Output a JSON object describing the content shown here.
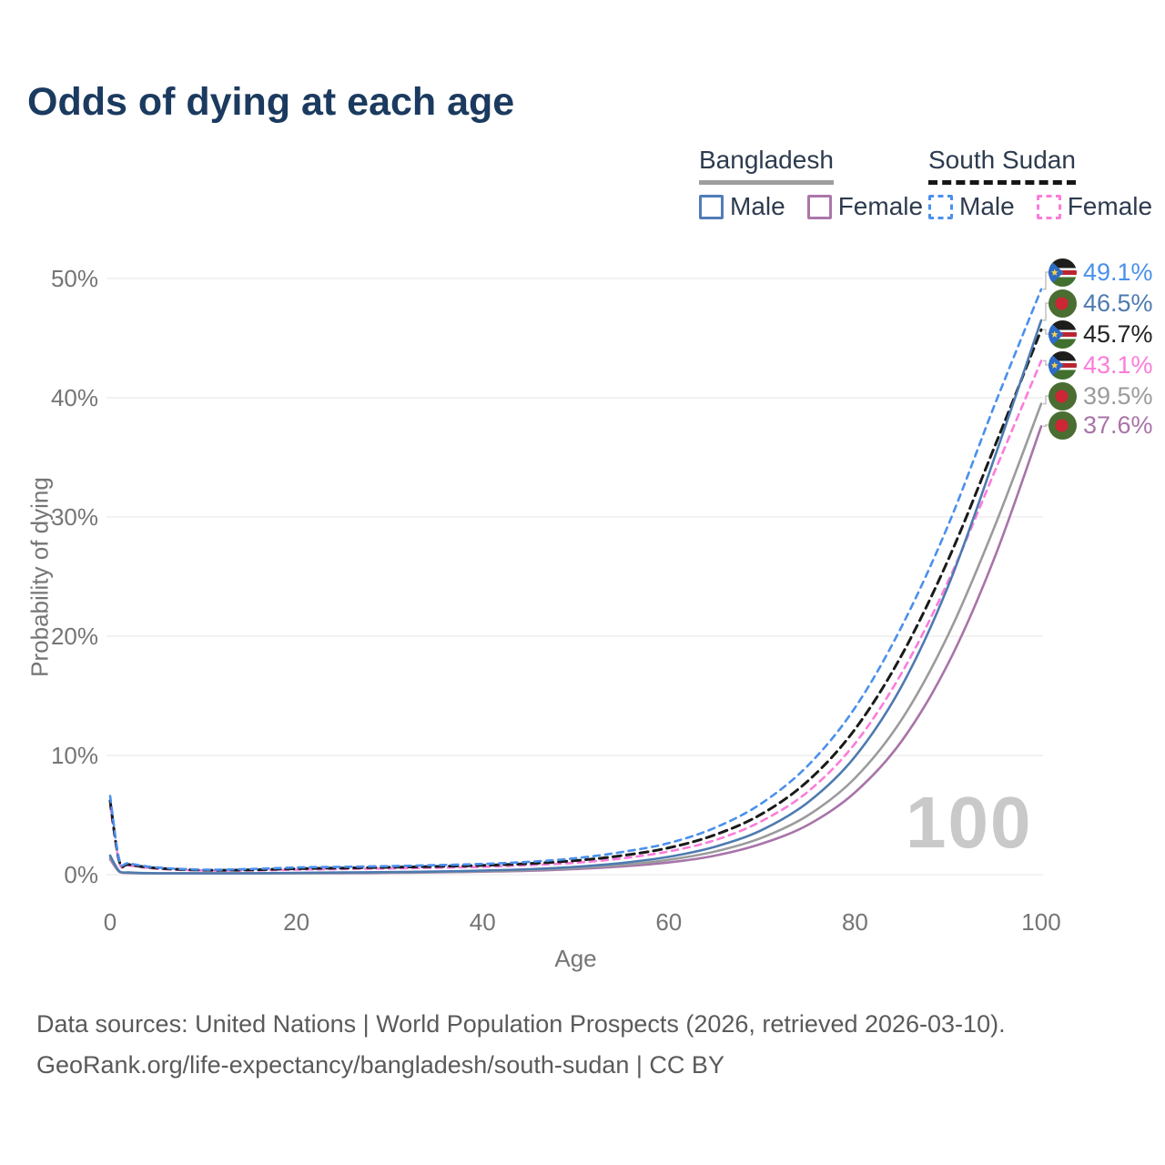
{
  "title": "Odds of dying at each age",
  "watermark": "100",
  "legend": {
    "groups": [
      {
        "country": "Bangladesh",
        "line_style": "solid",
        "underline_color": "#9e9e9e",
        "items": [
          {
            "label": "Male",
            "color": "#527cb8",
            "dashed": false
          },
          {
            "label": "Female",
            "color": "#aa77ab",
            "dashed": false
          }
        ]
      },
      {
        "country": "South Sudan",
        "line_style": "dashed",
        "underline_color": "#161616",
        "items": [
          {
            "label": "Male",
            "color": "#4a90ec",
            "dashed": true
          },
          {
            "label": "Female",
            "color": "#fb7cdb",
            "dashed": true
          }
        ]
      }
    ]
  },
  "chart_data": {
    "type": "line",
    "title": "Odds of dying at each age",
    "xlabel": "Age",
    "ylabel": "Probability of dying",
    "x_ticks": [
      0,
      20,
      40,
      60,
      80,
      100
    ],
    "y_ticks_pct": [
      0,
      10,
      20,
      30,
      40,
      50
    ],
    "y_tick_labels": [
      "0%",
      "10%",
      "20%",
      "30%",
      "40%",
      "50%"
    ],
    "xlim": [
      0,
      100
    ],
    "ylim_pct": [
      0,
      50
    ],
    "grid": "horizontal-only",
    "legend_position": "top-right",
    "ages": [
      0,
      1,
      2,
      5,
      10,
      15,
      20,
      25,
      30,
      35,
      40,
      45,
      50,
      55,
      60,
      65,
      70,
      75,
      80,
      85,
      90,
      95,
      100
    ],
    "series": [
      {
        "id": "ss-male",
        "name": "South Sudan Male",
        "country": "South Sudan",
        "sex": "Male",
        "flag": "ss",
        "color": "#4a90ec",
        "dashed": true,
        "end_label": "49.1%",
        "end_value_pct": 49.1,
        "values_pct": [
          6.6,
          1.2,
          0.95,
          0.6,
          0.42,
          0.47,
          0.6,
          0.66,
          0.72,
          0.8,
          0.9,
          1.08,
          1.38,
          1.9,
          2.65,
          3.95,
          6.0,
          9.2,
          14.0,
          20.8,
          29.3,
          39.4,
          49.1
        ]
      },
      {
        "id": "bd-male",
        "name": "Bangladesh Male",
        "country": "Bangladesh",
        "sex": "Male",
        "flag": "bd",
        "color": "#4d7ab0",
        "dashed": false,
        "end_label": "46.5%",
        "end_value_pct": 46.5,
        "values_pct": [
          1.6,
          0.28,
          0.18,
          0.11,
          0.09,
          0.11,
          0.15,
          0.18,
          0.21,
          0.26,
          0.34,
          0.46,
          0.66,
          0.98,
          1.5,
          2.35,
          3.75,
          6.1,
          9.9,
          15.8,
          24.2,
          35.0,
          46.5
        ]
      },
      {
        "id": "ss-total",
        "name": "South Sudan (both sexes)",
        "country": "South Sudan",
        "sex": "Both",
        "flag": "ss",
        "color": "#1a1a1a",
        "dashed": true,
        "end_label": "45.7%",
        "end_value_pct": 45.7,
        "values_pct": [
          6.2,
          1.1,
          0.85,
          0.55,
          0.38,
          0.4,
          0.5,
          0.56,
          0.62,
          0.69,
          0.78,
          0.93,
          1.18,
          1.6,
          2.25,
          3.35,
          5.1,
          7.9,
          12.2,
          18.4,
          26.4,
          35.9,
          45.7
        ]
      },
      {
        "id": "ss-female",
        "name": "South Sudan Female",
        "country": "South Sudan",
        "sex": "Female",
        "flag": "ss",
        "color": "#fb7cdb",
        "dashed": true,
        "end_label": "43.1%",
        "end_value_pct": 43.1,
        "values_pct": [
          5.8,
          1.0,
          0.78,
          0.5,
          0.35,
          0.35,
          0.42,
          0.47,
          0.52,
          0.58,
          0.66,
          0.8,
          1.0,
          1.37,
          1.95,
          2.9,
          4.5,
          7.0,
          11.0,
          16.9,
          24.6,
          33.8,
          43.1
        ]
      },
      {
        "id": "bd-total",
        "name": "Bangladesh (both sexes)",
        "country": "Bangladesh",
        "sex": "Both",
        "flag": "bd",
        "color": "#9b9b9b",
        "dashed": false,
        "end_label": "39.5%",
        "end_value_pct": 39.5,
        "values_pct": [
          1.45,
          0.25,
          0.16,
          0.1,
          0.08,
          0.09,
          0.12,
          0.15,
          0.18,
          0.22,
          0.29,
          0.39,
          0.56,
          0.82,
          1.25,
          1.95,
          3.1,
          5.0,
          8.1,
          13.0,
          20.1,
          29.2,
          39.5
        ]
      },
      {
        "id": "bd-female",
        "name": "Bangladesh Female",
        "country": "Bangladesh",
        "sex": "Female",
        "flag": "bd",
        "color": "#a874a8",
        "dashed": false,
        "end_label": "37.6%",
        "end_value_pct": 37.6,
        "values_pct": [
          1.3,
          0.22,
          0.14,
          0.09,
          0.07,
          0.08,
          0.1,
          0.12,
          0.15,
          0.19,
          0.25,
          0.33,
          0.47,
          0.69,
          1.02,
          1.6,
          2.6,
          4.2,
          6.9,
          11.2,
          17.7,
          26.6,
          37.6
        ]
      }
    ],
    "age_cursor": "100"
  },
  "axes": {
    "x_label": "Age",
    "y_label": "Probability of dying"
  },
  "footer": {
    "line1": "Data sources: United Nations | World Population Prospects (2026, retrieved 2026-03-10).",
    "line2": "GeoRank.org/life-expectancy/bangladesh/south-sudan | CC BY"
  },
  "flag_colors": {
    "bangladesh": {
      "field": "#4a6d32",
      "disc": "#cd2635"
    },
    "south_sudan": {
      "black": "#1d1d1b",
      "white": "#ffffff",
      "red": "#b9252f",
      "green": "#41702f",
      "blue": "#2e6bc4",
      "star": "#f6d44a"
    }
  }
}
